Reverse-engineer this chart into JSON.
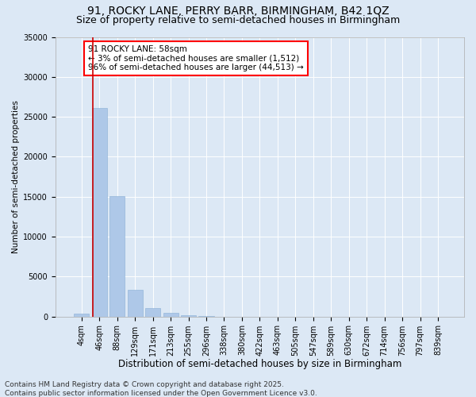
{
  "title1": "91, ROCKY LANE, PERRY BARR, BIRMINGHAM, B42 1QZ",
  "title2": "Size of property relative to semi-detached houses in Birmingham",
  "xlabel": "Distribution of semi-detached houses by size in Birmingham",
  "ylabel": "Number of semi-detached properties",
  "bar_labels": [
    "4sqm",
    "46sqm",
    "88sqm",
    "129sqm",
    "171sqm",
    "213sqm",
    "255sqm",
    "296sqm",
    "338sqm",
    "380sqm",
    "422sqm",
    "463sqm",
    "505sqm",
    "547sqm",
    "589sqm",
    "630sqm",
    "672sqm",
    "714sqm",
    "756sqm",
    "797sqm",
    "839sqm"
  ],
  "bar_values": [
    350,
    26100,
    15100,
    3350,
    1050,
    500,
    200,
    50,
    10,
    5,
    0,
    0,
    0,
    0,
    0,
    0,
    0,
    0,
    0,
    0,
    0
  ],
  "bar_color": "#aec8e8",
  "bar_edgecolor": "#8aafd4",
  "ylim": [
    0,
    35000
  ],
  "yticks": [
    0,
    5000,
    10000,
    15000,
    20000,
    25000,
    30000,
    35000
  ],
  "ytick_labels": [
    "0",
    "5000",
    "10000",
    "15000",
    "20000",
    "25000",
    "30000",
    "35000"
  ],
  "vline_color": "#cc0000",
  "vline_pos": 0.62,
  "annotation_title": "91 ROCKY LANE: 58sqm",
  "annotation_line1": "← 3% of semi-detached houses are smaller (1,512)",
  "annotation_line2": "96% of semi-detached houses are larger (44,513) →",
  "footer_line1": "Contains HM Land Registry data © Crown copyright and database right 2025.",
  "footer_line2": "Contains public sector information licensed under the Open Government Licence v3.0.",
  "bg_color": "#dce8f5",
  "plot_bg_color": "#dce8f5",
  "grid_color": "#ffffff",
  "title1_fontsize": 10,
  "title2_fontsize": 9,
  "xlabel_fontsize": 8.5,
  "ylabel_fontsize": 7.5,
  "tick_fontsize": 7,
  "annot_fontsize": 7.5,
  "footer_fontsize": 6.5
}
